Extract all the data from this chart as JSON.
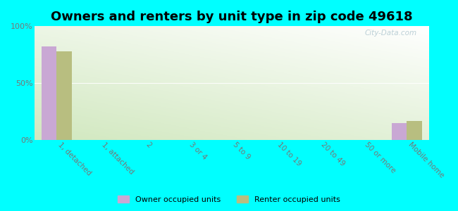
{
  "title": "Owners and renters by unit type in zip code 49618",
  "categories": [
    "1, detached",
    "1, attached",
    "2",
    "3 or 4",
    "5 to 9",
    "10 to 19",
    "20 to 49",
    "50 or more",
    "Mobile home"
  ],
  "owner_values": [
    82,
    0,
    0,
    0,
    0,
    0,
    0,
    0,
    15
  ],
  "renter_values": [
    78,
    0,
    0,
    0,
    0,
    0,
    0,
    0,
    17
  ],
  "owner_color": "#c9a8d4",
  "renter_color": "#b8be80",
  "background_fig": "#00ffff",
  "ylim": [
    0,
    100
  ],
  "yticks": [
    0,
    50,
    100
  ],
  "ytick_labels": [
    "0%",
    "50%",
    "100%"
  ],
  "bar_width": 0.35,
  "legend_owner": "Owner occupied units",
  "legend_renter": "Renter occupied units",
  "watermark": "City-Data.com",
  "grid_color": "#cccccc",
  "tick_color": "#777777",
  "title_fontsize": 13
}
